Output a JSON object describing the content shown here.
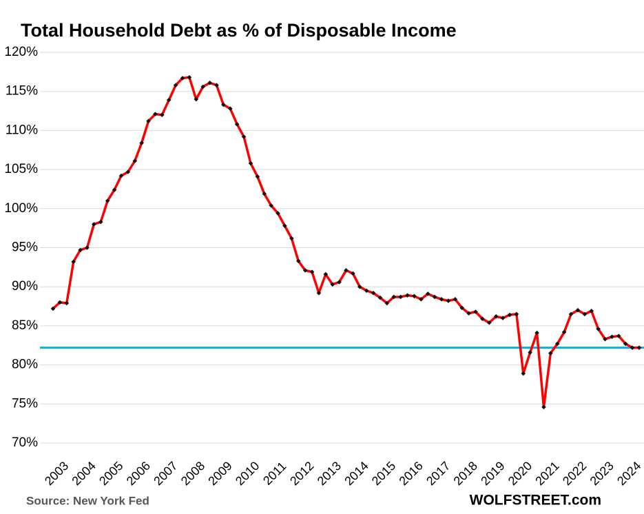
{
  "chart_data": {
    "type": "line",
    "title": "Total Household Debt as % of Disposable Income",
    "source": "Source: New York Fed",
    "brand": "WOLFSTREET.com",
    "categories": [
      "2003",
      null,
      null,
      null,
      "2004",
      null,
      null,
      null,
      "2005",
      null,
      null,
      null,
      "2006",
      null,
      null,
      null,
      "2007",
      null,
      null,
      null,
      "2008",
      null,
      null,
      null,
      "2009",
      null,
      null,
      null,
      "2010",
      null,
      null,
      null,
      "2011",
      null,
      null,
      null,
      "2012",
      null,
      null,
      null,
      "2013",
      null,
      null,
      null,
      "2014",
      null,
      null,
      null,
      "2015",
      null,
      null,
      null,
      "2016",
      null,
      null,
      null,
      "2017",
      null,
      null,
      null,
      "2018",
      null,
      null,
      null,
      "2019",
      null,
      null,
      null,
      "2020",
      null,
      null,
      null,
      "2021",
      null,
      null,
      null,
      "2022",
      null,
      null,
      null,
      "2023",
      null,
      null,
      null,
      "2024",
      null,
      null
    ],
    "series": [
      {
        "name": "Household debt to disposable income",
        "color": "#ff0000",
        "marker_color": "#111111",
        "values": [
          87.2,
          88.0,
          87.9,
          93.2,
          94.7,
          95.0,
          98.0,
          98.3,
          101.0,
          102.4,
          104.2,
          104.7,
          106.1,
          108.4,
          111.2,
          112.1,
          112.0,
          113.9,
          115.8,
          116.7,
          116.8,
          114.0,
          115.6,
          116.1,
          115.8,
          113.3,
          112.8,
          110.8,
          109.2,
          105.8,
          104.1,
          101.9,
          100.4,
          99.4,
          97.8,
          96.2,
          93.3,
          92.1,
          91.9,
          89.2,
          91.6,
          90.3,
          90.6,
          92.1,
          91.7,
          90.0,
          89.5,
          89.2,
          88.6,
          87.9,
          88.7,
          88.7,
          88.9,
          88.8,
          88.4,
          89.1,
          88.7,
          88.4,
          88.2,
          88.4,
          87.3,
          86.6,
          86.8,
          85.9,
          85.4,
          86.2,
          86.0,
          86.4,
          86.5,
          78.9,
          81.6,
          84.1,
          74.6,
          81.5,
          82.7,
          84.2,
          86.5,
          87.0,
          86.5,
          86.9,
          84.6,
          83.3,
          83.6,
          83.7,
          82.7,
          82.2,
          82.2
        ]
      }
    ],
    "reference_line": {
      "value": 82.2,
      "color": "#00b0f0"
    },
    "ylim": [
      70,
      120
    ],
    "yticks": [
      {
        "value": 70,
        "label": "70%"
      },
      {
        "value": 75,
        "label": "75%"
      },
      {
        "value": 80,
        "label": "80%"
      },
      {
        "value": 85,
        "label": "85%"
      },
      {
        "value": 90,
        "label": "90%"
      },
      {
        "value": 95,
        "label": "95%"
      },
      {
        "value": 100,
        "label": "100%"
      },
      {
        "value": 105,
        "label": "105%"
      },
      {
        "value": 110,
        "label": "110%"
      },
      {
        "value": 115,
        "label": "115%"
      },
      {
        "value": 120,
        "label": "120%"
      }
    ],
    "grid": true
  }
}
